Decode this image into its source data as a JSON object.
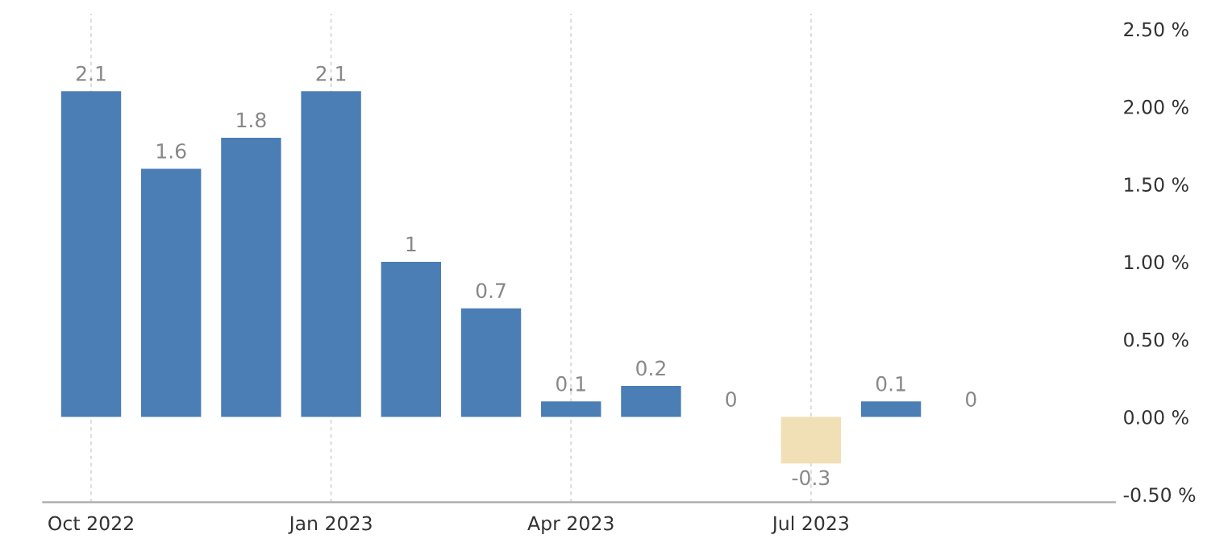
{
  "chart_data": {
    "type": "bar",
    "categories": [
      "Oct 2022",
      null,
      null,
      "Jan 2023",
      null,
      null,
      "Apr 2023",
      null,
      null,
      "Jul 2023",
      null,
      null
    ],
    "values": [
      2.1,
      1.6,
      1.8,
      2.1,
      1,
      0.7,
      0.1,
      0.2,
      0,
      -0.3,
      0.1,
      0
    ],
    "colors": [
      "#4a7eb5",
      "#4a7eb5",
      "#4a7eb5",
      "#4a7eb5",
      "#4a7eb5",
      "#4a7eb5",
      "#4a7eb5",
      "#4a7eb5",
      "#4a7eb5",
      "#f1e0b5",
      "#4a7eb5",
      "#4a7eb5"
    ],
    "ylim": [
      -0.55,
      2.6
    ],
    "yticks": [
      {
        "value": -0.5,
        "label": "-0.50 %"
      },
      {
        "value": 0,
        "label": "0.00 %"
      },
      {
        "value": 0.5,
        "label": "0.50 %"
      },
      {
        "value": 1,
        "label": "1.00 %"
      },
      {
        "value": 1.5,
        "label": "1.50 %"
      },
      {
        "value": 2,
        "label": "2.00 %"
      },
      {
        "value": 2.5,
        "label": "2.50 %"
      }
    ],
    "data_labels": true,
    "grid": "x"
  }
}
